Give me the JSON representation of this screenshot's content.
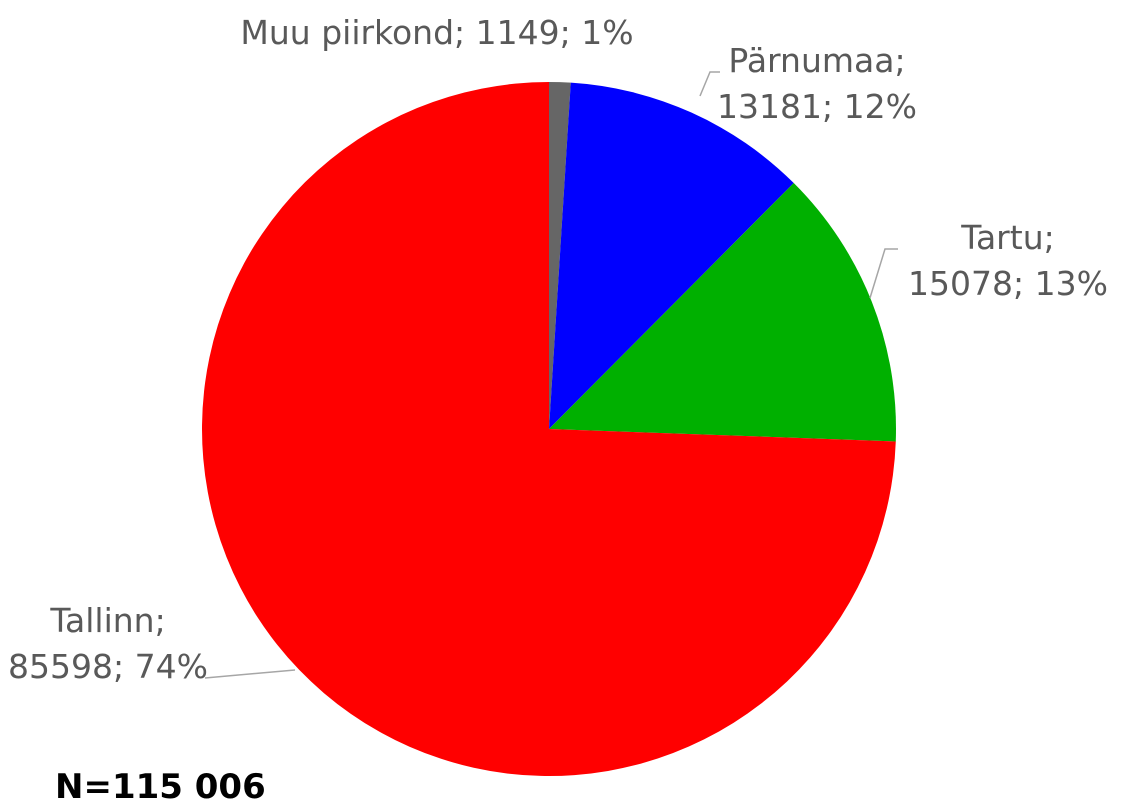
{
  "chart_data": {
    "type": "pie",
    "categories": [
      "Muu piirkond",
      "Pärnumaa",
      "Tartu",
      "Tallinn"
    ],
    "values": [
      1149,
      13181,
      15078,
      85598
    ],
    "value_labels": [
      "Muu piirkond; 1149; 1%",
      "Pärnumaa; 13181; 12%",
      "Tartu; 15078; 13%",
      "Tallinn; 85598; 74%"
    ],
    "colors": [
      "#666666",
      "#0000ff",
      "#00b000",
      "#ff0000"
    ],
    "annotation": "N=115 006"
  }
}
